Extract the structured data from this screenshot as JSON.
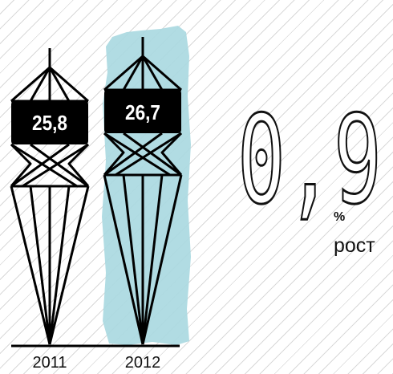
{
  "chart_data": {
    "type": "bar",
    "categories": [
      "2011",
      "2012"
    ],
    "values": [
      25.8,
      26.7
    ],
    "value_labels": [
      "25,8",
      "26,7"
    ],
    "highlight_color": "#a9d8e0",
    "title": "",
    "xlabel": "",
    "ylabel": ""
  },
  "growth": {
    "value": "0,9",
    "unit": "%",
    "label": "рост"
  }
}
